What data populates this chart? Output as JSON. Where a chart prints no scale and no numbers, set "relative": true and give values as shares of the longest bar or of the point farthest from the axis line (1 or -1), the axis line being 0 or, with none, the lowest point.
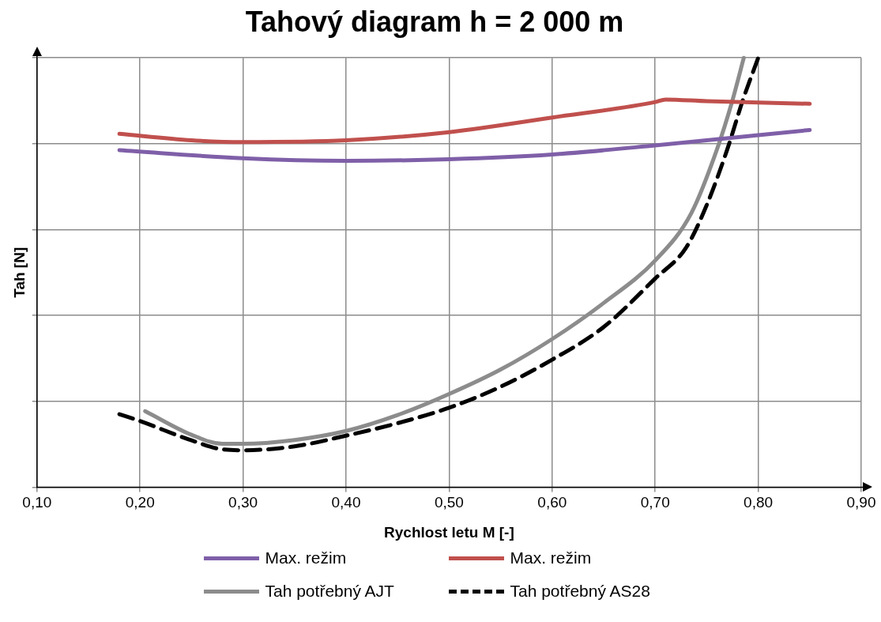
{
  "chart_data": {
    "type": "line",
    "title": "Tahový diagram h = 2 000 m",
    "xlabel": "Rychlost letu M [-]",
    "ylabel": "Tah [N]",
    "relative": true,
    "grid": true,
    "legend": "bottom",
    "marker": "none",
    "xlim": [
      0.1,
      0.9
    ],
    "xticks": [
      {
        "value": 0.1,
        "label": "0,10"
      },
      {
        "value": 0.2,
        "label": "0,20"
      },
      {
        "value": 0.3,
        "label": "0,30"
      },
      {
        "value": 0.4,
        "label": "0,40"
      },
      {
        "value": 0.5,
        "label": "0,50"
      },
      {
        "value": 0.6,
        "label": "0,60"
      },
      {
        "value": 0.7,
        "label": "0,70"
      },
      {
        "value": 0.8,
        "label": "0,80"
      },
      {
        "value": 0.9,
        "label": "0,90"
      }
    ],
    "series": [
      {
        "name": "Max. režim",
        "color": "#7f5fa8",
        "line_style": "solid",
        "x": [
          0.18,
          0.3,
          0.4,
          0.5,
          0.6,
          0.7,
          0.85
        ],
        "values": [
          0.785,
          0.766,
          0.76,
          0.764,
          0.775,
          0.796,
          0.832
        ]
      },
      {
        "name": "Max. režim",
        "color": "#c0504d",
        "line_style": "solid",
        "x": [
          0.18,
          0.25,
          0.3,
          0.4,
          0.5,
          0.6,
          0.7,
          0.71,
          0.75,
          0.85
        ],
        "values": [
          0.823,
          0.808,
          0.804,
          0.808,
          0.827,
          0.861,
          0.897,
          0.903,
          0.899,
          0.893
        ]
      },
      {
        "name": "Tah potřebný AJT",
        "color": "#8c8c8c",
        "line_style": "solid",
        "x": [
          0.205,
          0.25,
          0.28,
          0.3,
          0.35,
          0.4,
          0.45,
          0.5,
          0.55,
          0.6,
          0.65,
          0.7,
          0.735,
          0.76,
          0.775,
          0.786
        ],
        "values": [
          0.177,
          0.122,
          0.101,
          0.101,
          0.11,
          0.131,
          0.168,
          0.217,
          0.274,
          0.345,
          0.429,
          0.528,
          0.638,
          0.787,
          0.901,
          1.0
        ]
      },
      {
        "name": "Tah potřebný AS28",
        "color": "#000000",
        "line_style": "dashed",
        "x": [
          0.18,
          0.2,
          0.25,
          0.28,
          0.3,
          0.35,
          0.4,
          0.45,
          0.5,
          0.55,
          0.6,
          0.65,
          0.7,
          0.73,
          0.75,
          0.77,
          0.785,
          0.8
        ],
        "values": [
          0.17,
          0.154,
          0.109,
          0.088,
          0.086,
          0.095,
          0.12,
          0.149,
          0.185,
          0.234,
          0.297,
          0.373,
          0.486,
          0.558,
          0.657,
          0.787,
          0.901,
          1.0
        ]
      }
    ]
  }
}
